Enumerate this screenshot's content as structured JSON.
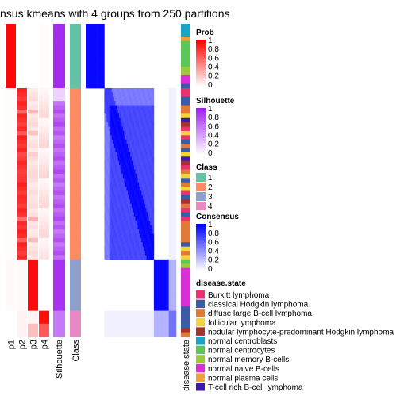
{
  "title": "nsus kmeans with 4 groups from 250 partitions",
  "chart_data": {
    "type": "heatmap",
    "title": "nsus kmeans with 4 groups from 250 partitions",
    "column_annotation_labels": [
      "p1",
      "p2",
      "p3",
      "p4",
      "Silhouette",
      "Class"
    ],
    "disease_column_label": "disease.state",
    "groups": [
      {
        "class": "1",
        "n_samples": 15,
        "mean_prob": [
          0.97,
          0.0,
          0.0,
          0.01
        ],
        "silhouette": 0.95
      },
      {
        "class": "2",
        "n_samples": 40,
        "mean_prob": [
          0.01,
          0.88,
          0.08,
          0.03
        ],
        "silhouette": 0.7
      },
      {
        "class": "3",
        "n_samples": 12,
        "mean_prob": [
          0.02,
          0.02,
          0.96,
          0.0
        ],
        "silhouette": 0.92
      },
      {
        "class": "4",
        "n_samples": 6,
        "mean_prob": [
          0.0,
          0.05,
          0.15,
          0.8
        ],
        "silhouette": 0.6
      }
    ],
    "legends": {
      "prob": {
        "title": "Prob",
        "ticks": [
          "1",
          "0.8",
          "0.6",
          "0.4",
          "0.2",
          "0"
        ],
        "color_low": "#ffffff",
        "color_high": "#ff0000"
      },
      "silhouette": {
        "title": "Silhouette",
        "ticks": [
          "1",
          "0.8",
          "0.6",
          "0.4",
          "0.2",
          "0"
        ],
        "color_low": "#ffffff",
        "color_high": "#a020f0"
      },
      "class": {
        "title": "Class",
        "items": [
          {
            "label": "1",
            "color": "#66c2a5"
          },
          {
            "label": "2",
            "color": "#fc8d62"
          },
          {
            "label": "3",
            "color": "#8da0cb"
          },
          {
            "label": "4",
            "color": "#e78ac3"
          }
        ]
      },
      "consensus": {
        "title": "Consensus",
        "ticks": [
          "1",
          "0.8",
          "0.6",
          "0.4",
          "0.2",
          "0"
        ],
        "color_low": "#ffffff",
        "color_high": "#0000ff"
      },
      "disease_state": {
        "title": "disease.state",
        "items": [
          {
            "label": "Burkitt lymphoma",
            "color": "#e8336f"
          },
          {
            "label": "classical Hodgkin lymphoma",
            "color": "#3b5ba5"
          },
          {
            "label": "diffuse large B-cell lymphoma",
            "color": "#e07a38"
          },
          {
            "label": "follicular lymphoma",
            "color": "#f2d53c"
          },
          {
            "label": "nodular lymphocyte-predominant Hodgkin lymphoma",
            "color": "#a73030"
          },
          {
            "label": "normal centroblasts",
            "color": "#1ba3c6"
          },
          {
            "label": "normal centrocytes",
            "color": "#5dc55a"
          },
          {
            "label": "normal memory B-cells",
            "color": "#9dc93a"
          },
          {
            "label": "normal naive B-cells",
            "color": "#d82fd6"
          },
          {
            "label": "normal plasma cells",
            "color": "#f0a03a"
          },
          {
            "label": "T-cell rich B-cell lymphoma",
            "color": "#3d1aa3"
          }
        ]
      }
    },
    "disease_sequence": [
      5,
      5,
      5,
      9,
      6,
      6,
      6,
      6,
      6,
      6,
      7,
      7,
      8,
      8,
      1,
      0,
      0,
      1,
      1,
      2,
      2,
      3,
      10,
      4,
      0,
      3,
      0,
      1,
      2,
      1,
      3,
      10,
      4,
      0,
      2,
      3,
      1,
      2,
      3,
      0,
      1,
      4,
      2,
      0,
      1,
      0,
      2,
      2,
      2,
      2,
      2,
      1,
      3,
      2,
      3,
      6,
      7,
      8,
      8,
      8,
      8,
      8,
      8,
      8,
      8,
      8,
      1,
      1,
      1,
      1,
      1,
      4,
      2
    ]
  }
}
